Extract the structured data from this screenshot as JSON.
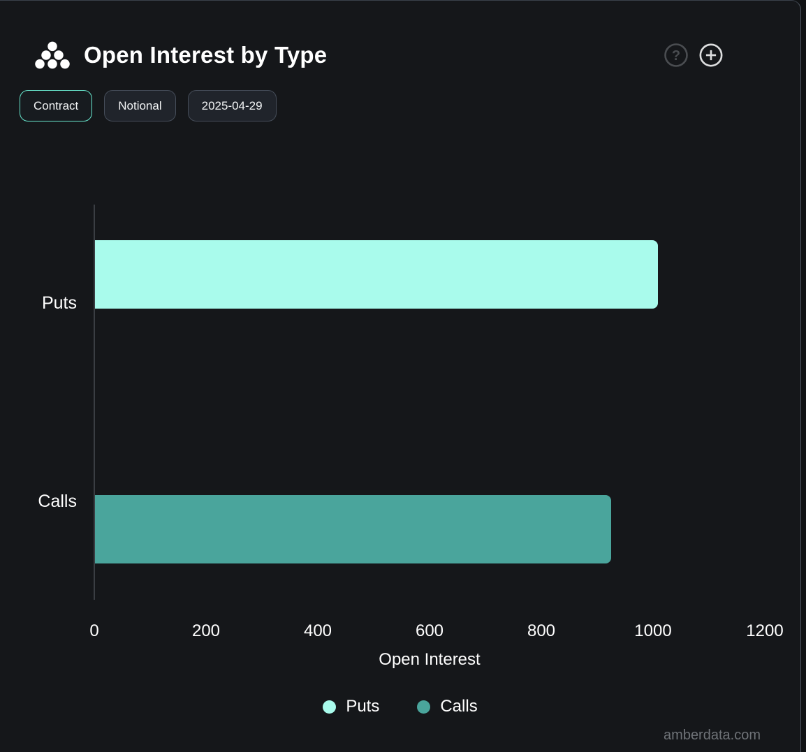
{
  "header": {
    "title": "Open Interest by Type",
    "icons": {
      "logo": "cluster-dots-logo",
      "help": "question-mark-circle",
      "add": "plus-circle"
    }
  },
  "toolbar": {
    "buttons": [
      {
        "label": "Contract",
        "active": true
      },
      {
        "label": "Notional",
        "active": false
      },
      {
        "label": "2025-04-29",
        "active": false
      }
    ]
  },
  "chart_data": {
    "type": "bar",
    "orientation": "horizontal",
    "title": "Open Interest by Type",
    "categories": [
      "Puts",
      "Calls"
    ],
    "series": [
      {
        "name": "Puts",
        "color": "#a9fbec",
        "values": [
          1007,
          0
        ]
      },
      {
        "name": "Calls",
        "color": "#4aa59c",
        "values": [
          0,
          924
        ]
      }
    ],
    "xlabel": "Open Interest",
    "xlim": [
      0,
      1200
    ],
    "xticks": [
      0,
      200,
      400,
      600,
      800,
      1000,
      1200
    ],
    "grid": false,
    "legend_position": "bottom",
    "legend": [
      {
        "label": "Puts",
        "color": "#a9fbec"
      },
      {
        "label": "Calls",
        "color": "#4aa59c"
      }
    ]
  },
  "footer": {
    "watermark": "amberdata.com"
  },
  "colors": {
    "background": "#15171a",
    "accent_mint": "#a9fbec",
    "accent_teal": "#4aa59c",
    "active_button_border": "#68e7ce",
    "axis_line": "#3a3e43",
    "text": "#ffffff",
    "watermark_text": "#6f7378"
  }
}
